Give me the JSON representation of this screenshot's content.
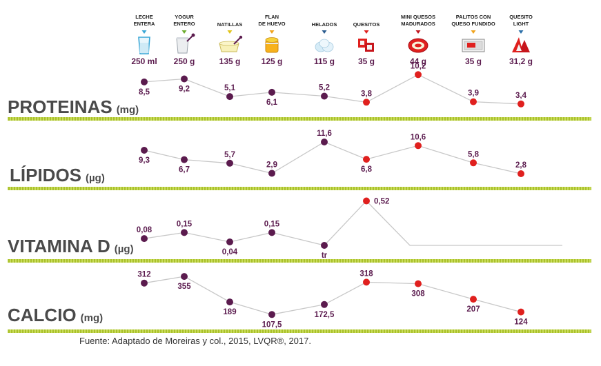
{
  "chart_data": {
    "type": "line",
    "categories": [
      {
        "name": [
          "LECHE",
          "ENTERA"
        ],
        "portion": "250 ml",
        "marker": "#3aa7d6",
        "group": "purple"
      },
      {
        "name": [
          "YOGUR",
          "ENTERO"
        ],
        "portion": "250 g",
        "marker": "#6cac2e",
        "group": "purple"
      },
      {
        "name": [
          "NATILLAS"
        ],
        "portion": "135 g",
        "marker": "#e0c419",
        "group": "purple"
      },
      {
        "name": [
          "FLAN",
          "DE HUEVO"
        ],
        "portion": "125 g",
        "marker": "#f0a31c",
        "group": "purple"
      },
      {
        "name": [
          "HELADOS"
        ],
        "portion": "115 g",
        "marker": "#2b5c8f",
        "group": "purple"
      },
      {
        "name": [
          "QUESITOS"
        ],
        "portion": "35 g",
        "marker": "#e0201e",
        "group": "red"
      },
      {
        "name": [
          "MINI QUESOS",
          "MADURADOS"
        ],
        "portion": "44 g",
        "marker": "#c0151e",
        "group": "red"
      },
      {
        "name": [
          "PALITOS CON",
          "QUESO FUNDIDO"
        ],
        "portion": "35 g",
        "marker": "#f0a31c",
        "group": "red"
      },
      {
        "name": [
          "QUESITO",
          "LIGHT"
        ],
        "portion": "31,2 g",
        "marker": "#2b6fa8",
        "group": "red"
      }
    ],
    "series": [
      {
        "name": "PROTEINAS",
        "unit": "(mg)",
        "values": [
          8.5,
          9.2,
          5.1,
          6.1,
          5.2,
          3.8,
          10.2,
          3.9,
          3.4
        ],
        "labels": [
          "8,5",
          "9,2",
          "5,1",
          "6,1",
          "5,2",
          "3,8",
          "10,2",
          "3,9",
          "3,4"
        ],
        "ylim": [
          3.2,
          10.4
        ]
      },
      {
        "name": "LÍPIDOS",
        "unit": "(µg)",
        "values": [
          9.3,
          6.7,
          5.7,
          2.9,
          11.6,
          6.8,
          10.6,
          5.8,
          2.8
        ],
        "labels": [
          "9,3",
          "6,7",
          "5,7",
          "2,9",
          "11,6",
          "6,8",
          "10,6",
          "5,8",
          "2,8"
        ],
        "ylim": [
          2.6,
          11.8
        ]
      },
      {
        "name": "VITAMINA D",
        "unit": "(µg)",
        "values": [
          0.08,
          0.15,
          0.04,
          0.15,
          0,
          0.52,
          null,
          null,
          null
        ],
        "labels": [
          "0,08",
          "0,15",
          "0,04",
          "0,15",
          "tr",
          "0,52",
          "",
          "",
          ""
        ],
        "ylim": [
          0,
          0.54
        ]
      },
      {
        "name": "CALCIO",
        "unit": "(mg)",
        "values": [
          312,
          355,
          189,
          107.5,
          172.5,
          318,
          308,
          207,
          124
        ],
        "labels": [
          "312",
          "355",
          "189",
          "107,5",
          "172,5",
          "318",
          "308",
          "207",
          "124"
        ],
        "ylim": [
          100,
          360
        ]
      }
    ],
    "colors": {
      "dairy": "#5b1b4e",
      "cheese": "#e0201e",
      "line": "#c8c8c8",
      "divider": "#b7d031",
      "text": "#4a4a4a"
    }
  },
  "source": "Fuente: Adaptado de Moreiras y col., 2015, LVQR®, 2017."
}
